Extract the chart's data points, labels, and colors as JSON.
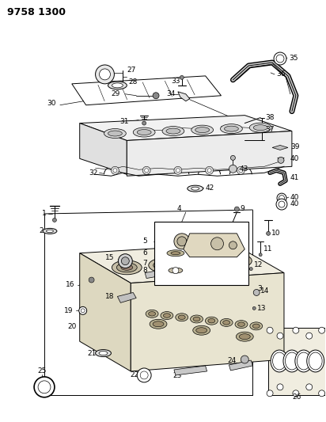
{
  "title": "9758 1300",
  "bg_color": "#ffffff",
  "fig_width": 4.12,
  "fig_height": 5.33,
  "dpi": 100,
  "lw": 0.7,
  "label_fs": 6.5,
  "label_color": "#000000"
}
